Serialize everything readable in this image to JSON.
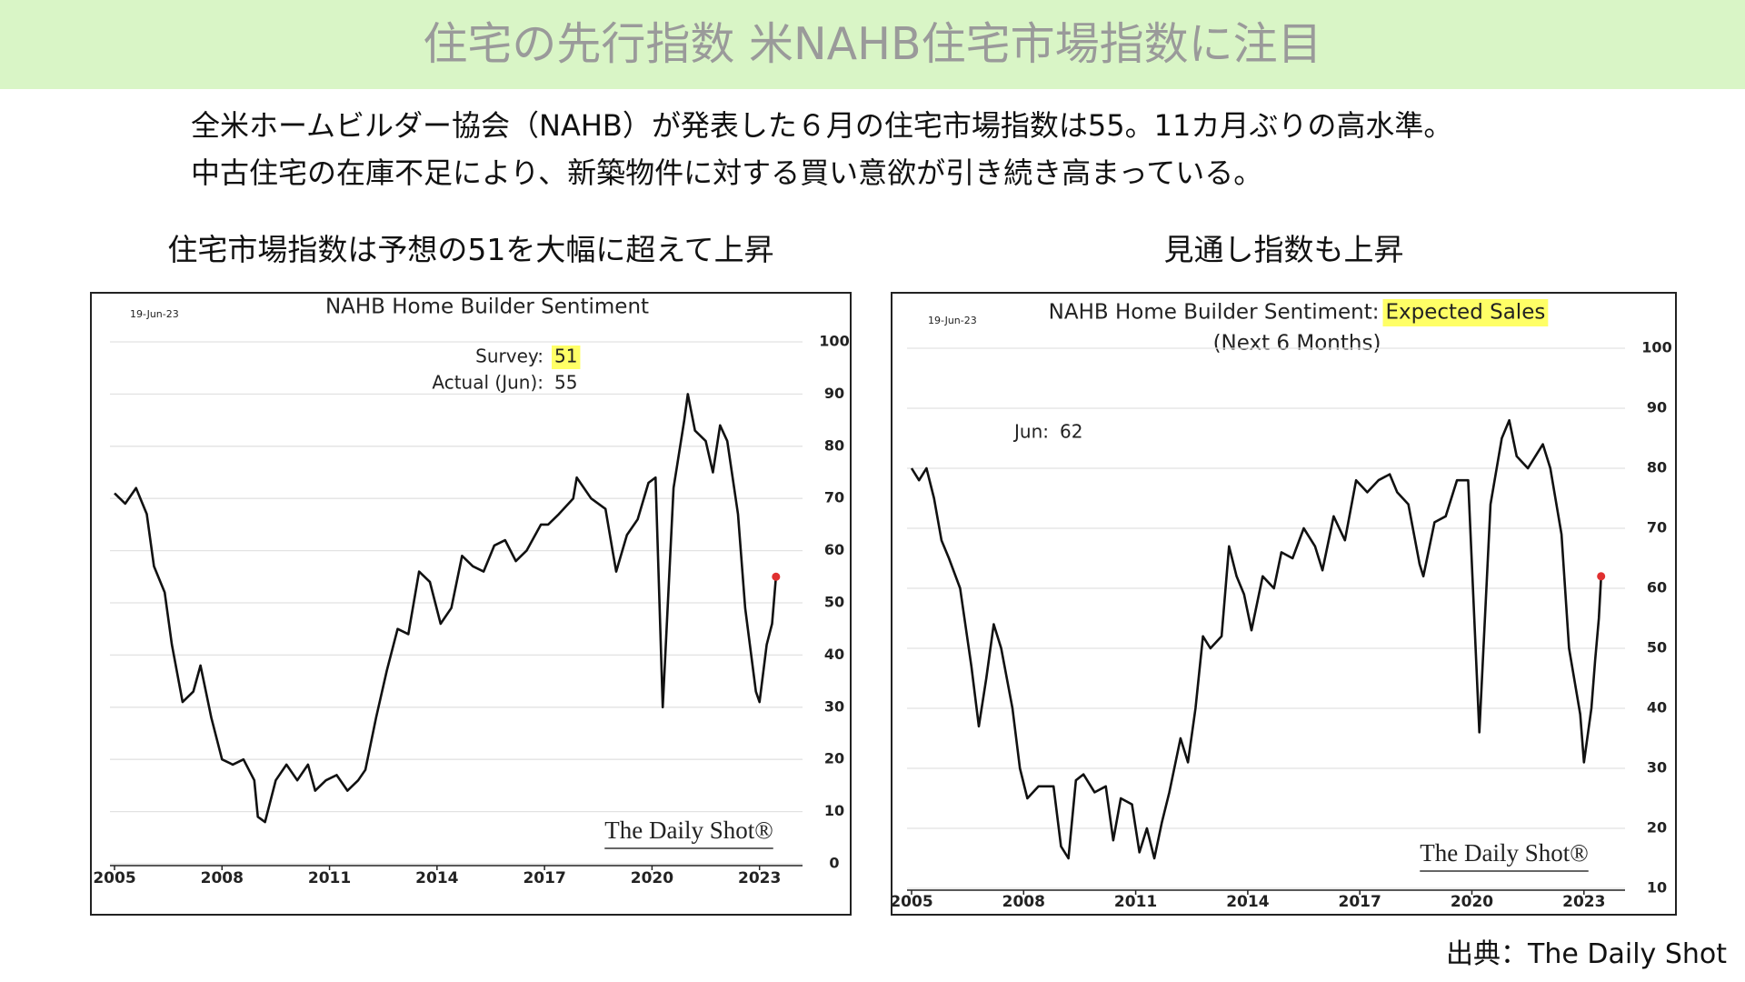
{
  "header": {
    "title": "住宅の先行指数 米NAHB住宅市場指数に注目"
  },
  "lead": [
    "全米ホームビルダー協会（NAHB）が発表した６月の住宅市場指数は55。11カ月ぶりの高水準。",
    "中古住宅の在庫不足により、新築物件に対する買い意欲が引き続き高まっている。"
  ],
  "source": "出典：The Daily Shot",
  "chart_data": [
    {
      "type": "line",
      "caption": "住宅市場指数は予想の51を大幅に超えて上昇",
      "date": "19-Jun-23",
      "title": "NAHB Home Builder Sentiment",
      "annotations": [
        {
          "label": "Survey:",
          "value": 51,
          "highlight": "#ffff66"
        },
        {
          "label": "Actual (Jun):",
          "value": 55
        }
      ],
      "watermark": "The Daily Shot®",
      "x": [
        2005.0,
        2005.3,
        2005.6,
        2005.9,
        2006.1,
        2006.4,
        2006.6,
        2006.9,
        2007.2,
        2007.4,
        2007.7,
        2008.0,
        2008.3,
        2008.6,
        2008.9,
        2009.0,
        2009.2,
        2009.5,
        2009.8,
        2010.1,
        2010.4,
        2010.6,
        2010.9,
        2011.2,
        2011.5,
        2011.8,
        2012.0,
        2012.3,
        2012.6,
        2012.9,
        2013.2,
        2013.5,
        2013.8,
        2014.1,
        2014.4,
        2014.7,
        2015.0,
        2015.3,
        2015.6,
        2015.9,
        2016.2,
        2016.5,
        2016.9,
        2017.1,
        2017.4,
        2017.8,
        2017.9,
        2018.3,
        2018.7,
        2018.9,
        2019.0,
        2019.3,
        2019.6,
        2019.9,
        2020.1,
        2020.3,
        2020.6,
        2020.9,
        2021.0,
        2021.2,
        2021.5,
        2021.7,
        2021.9,
        2022.1,
        2022.4,
        2022.6,
        2022.9,
        2023.0,
        2023.2,
        2023.35,
        2023.46
      ],
      "series": [
        {
          "color": "#111111",
          "values": [
            71,
            69,
            72,
            67,
            57,
            52,
            42,
            31,
            33,
            38,
            28,
            20,
            19,
            20,
            16,
            9,
            8,
            16,
            19,
            16,
            19,
            14,
            16,
            17,
            14,
            16,
            18,
            28,
            37,
            45,
            44,
            56,
            54,
            46,
            49,
            59,
            57,
            56,
            61,
            62,
            58,
            60,
            65,
            65,
            67,
            70,
            74,
            70,
            68,
            60,
            56,
            63,
            66,
            73,
            74,
            30,
            72,
            85,
            90,
            83,
            81,
            75,
            84,
            81,
            67,
            49,
            33,
            31,
            42,
            46,
            55
          ]
        }
      ],
      "last_point_color": "#e03030",
      "xlim": [
        2005,
        2024.2
      ],
      "xticks": [
        2005,
        2008,
        2011,
        2014,
        2017,
        2020,
        2023
      ],
      "ylim": [
        0,
        100
      ],
      "yticks": [
        0,
        10,
        20,
        30,
        40,
        50,
        60,
        70,
        80,
        90,
        100
      ],
      "grid": true
    },
    {
      "type": "line",
      "caption": "見通し指数も上昇",
      "date": "19-Jun-23",
      "title": "NAHB Home Builder Sentiment:",
      "title_highlight": "Expected Sales",
      "highlight": "#ffff66",
      "subtitle": "(Next 6 Months)",
      "annotations": [
        {
          "label": "Jun:",
          "value": 62
        }
      ],
      "watermark": "The Daily Shot®",
      "x": [
        2005.0,
        2005.2,
        2005.4,
        2005.6,
        2005.8,
        2006.0,
        2006.3,
        2006.6,
        2006.8,
        2007.0,
        2007.2,
        2007.4,
        2007.7,
        2007.9,
        2008.1,
        2008.4,
        2008.8,
        2009.0,
        2009.2,
        2009.4,
        2009.6,
        2009.9,
        2010.2,
        2010.4,
        2010.6,
        2010.9,
        2011.1,
        2011.3,
        2011.5,
        2011.7,
        2011.9,
        2012.2,
        2012.4,
        2012.6,
        2012.8,
        2013.0,
        2013.3,
        2013.5,
        2013.7,
        2013.9,
        2014.1,
        2014.4,
        2014.7,
        2014.9,
        2015.2,
        2015.5,
        2015.8,
        2016.0,
        2016.3,
        2016.6,
        2016.9,
        2017.2,
        2017.5,
        2017.8,
        2018.0,
        2018.3,
        2018.6,
        2018.7,
        2019.0,
        2019.3,
        2019.6,
        2019.9,
        2020.2,
        2020.5,
        2020.8,
        2021.0,
        2021.2,
        2021.5,
        2021.9,
        2022.1,
        2022.4,
        2022.6,
        2022.9,
        2023.0,
        2023.2,
        2023.3,
        2023.4,
        2023.46
      ],
      "series": [
        {
          "color": "#111111",
          "values": [
            80,
            78,
            80,
            75,
            68,
            65,
            60,
            47,
            37,
            45,
            54,
            50,
            40,
            30,
            25,
            27,
            27,
            17,
            15,
            28,
            29,
            26,
            27,
            18,
            25,
            24,
            16,
            20,
            15,
            21,
            26,
            35,
            31,
            40,
            52,
            50,
            52,
            67,
            62,
            59,
            53,
            62,
            60,
            66,
            65,
            70,
            67,
            63,
            72,
            68,
            78,
            76,
            78,
            79,
            76,
            74,
            64,
            62,
            71,
            72,
            78,
            78,
            36,
            74,
            85,
            88,
            82,
            80,
            84,
            80,
            69,
            50,
            39,
            31,
            40,
            48,
            55,
            62
          ]
        }
      ],
      "last_point_color": "#e03030",
      "xlim": [
        2005,
        2024.1
      ],
      "xticks": [
        2005,
        2008,
        2011,
        2014,
        2017,
        2020,
        2023
      ],
      "ylim": [
        10,
        100
      ],
      "yticks": [
        10,
        20,
        30,
        40,
        50,
        60,
        70,
        80,
        90,
        100
      ],
      "grid": true
    }
  ]
}
